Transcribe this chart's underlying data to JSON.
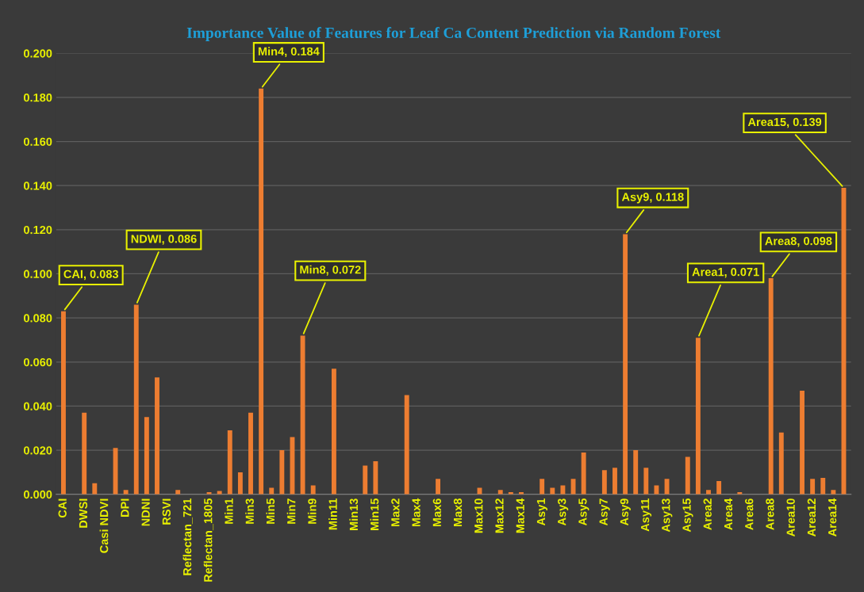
{
  "chart_data": {
    "type": "bar",
    "title": "Importance Value of Features for Leaf Ca Content Prediction via Random Forest",
    "categories": [
      "CAI",
      null,
      "DWSI",
      null,
      "Casi NDVI",
      null,
      "DPI",
      null,
      "NDNI",
      null,
      "RSVI",
      null,
      "Reflectan_721",
      null,
      "Reflectan_1805",
      null,
      "Min1",
      null,
      "Min3",
      null,
      "Min5",
      null,
      "Min7",
      null,
      "Min9",
      null,
      "Min11",
      null,
      "Min13",
      null,
      "Min15",
      null,
      "Max2",
      null,
      "Max4",
      null,
      "Max6",
      null,
      "Max8",
      null,
      "Max10",
      null,
      "Max12",
      null,
      "Max14",
      null,
      "Asy1",
      null,
      "Asy3",
      null,
      "Asy5",
      null,
      "Asy7",
      null,
      "Asy9",
      null,
      "Asy11",
      null,
      "Asy13",
      null,
      "Asy15",
      null,
      "Area2",
      null,
      "Area4",
      null,
      "Area6",
      null,
      "Area8",
      null,
      "Area10",
      null,
      "Area12",
      null,
      "Area14",
      null
    ],
    "values": [
      0.083,
      0,
      0.037,
      0.005,
      0,
      0.021,
      0.002,
      0.086,
      0.035,
      0.053,
      0,
      0.002,
      0,
      0,
      0.001,
      0.0015,
      0.029,
      0.01,
      0.037,
      0.184,
      0.003,
      0.02,
      0.026,
      0.072,
      0.004,
      0,
      0.057,
      0,
      0,
      0.013,
      0.015,
      0,
      0,
      0.045,
      0,
      0,
      0.007,
      0,
      0,
      0,
      0.003,
      0,
      0.002,
      0.001,
      0.001,
      0,
      0.007,
      0.003,
      0.004,
      0.007,
      0.019,
      0,
      0.011,
      0.012,
      0.118,
      0.02,
      0.012,
      0.004,
      0.007,
      0,
      0.017,
      0.071,
      0.002,
      0.006,
      0,
      0.001,
      0,
      0,
      0.098,
      0.028,
      0,
      0.047,
      0.007,
      0.0075,
      0.002,
      0.139
    ],
    "value_labels": [
      "CAI, 0.083",
      null,
      null,
      null,
      null,
      null,
      null,
      "NDWI, 0.086",
      null,
      null,
      null,
      null,
      null,
      null,
      null,
      null,
      null,
      null,
      null,
      "Min4, 0.184",
      null,
      null,
      null,
      "Min8, 0.072",
      null,
      null,
      null,
      null,
      null,
      null,
      null,
      null,
      null,
      null,
      null,
      null,
      null,
      null,
      null,
      null,
      null,
      null,
      null,
      null,
      null,
      null,
      null,
      null,
      null,
      null,
      null,
      null,
      null,
      null,
      "Asy9, 0.118",
      null,
      null,
      null,
      null,
      null,
      null,
      "Area1, 0.071",
      null,
      null,
      null,
      null,
      null,
      null,
      "Area8, 0.098",
      null,
      null,
      null,
      null,
      null,
      null,
      "Area15, 0.139"
    ],
    "color": "#ed7d31",
    "ylim": [
      0,
      0.2
    ],
    "yticks": [
      {
        "value": 0,
        "label": "0.000"
      },
      {
        "value": 0.02,
        "label": "0.020"
      },
      {
        "value": 0.04,
        "label": "0.040"
      },
      {
        "value": 0.06,
        "label": "0.060"
      },
      {
        "value": 0.08,
        "label": "0.080"
      },
      {
        "value": 0.1,
        "label": "0.100"
      },
      {
        "value": 0.12,
        "label": "0.120"
      },
      {
        "value": 0.14,
        "label": "0.140"
      },
      {
        "value": 0.16,
        "label": "0.160"
      },
      {
        "value": 0.18,
        "label": "0.180"
      },
      {
        "value": 0.2,
        "label": "0.200"
      }
    ],
    "grid": "y"
  }
}
